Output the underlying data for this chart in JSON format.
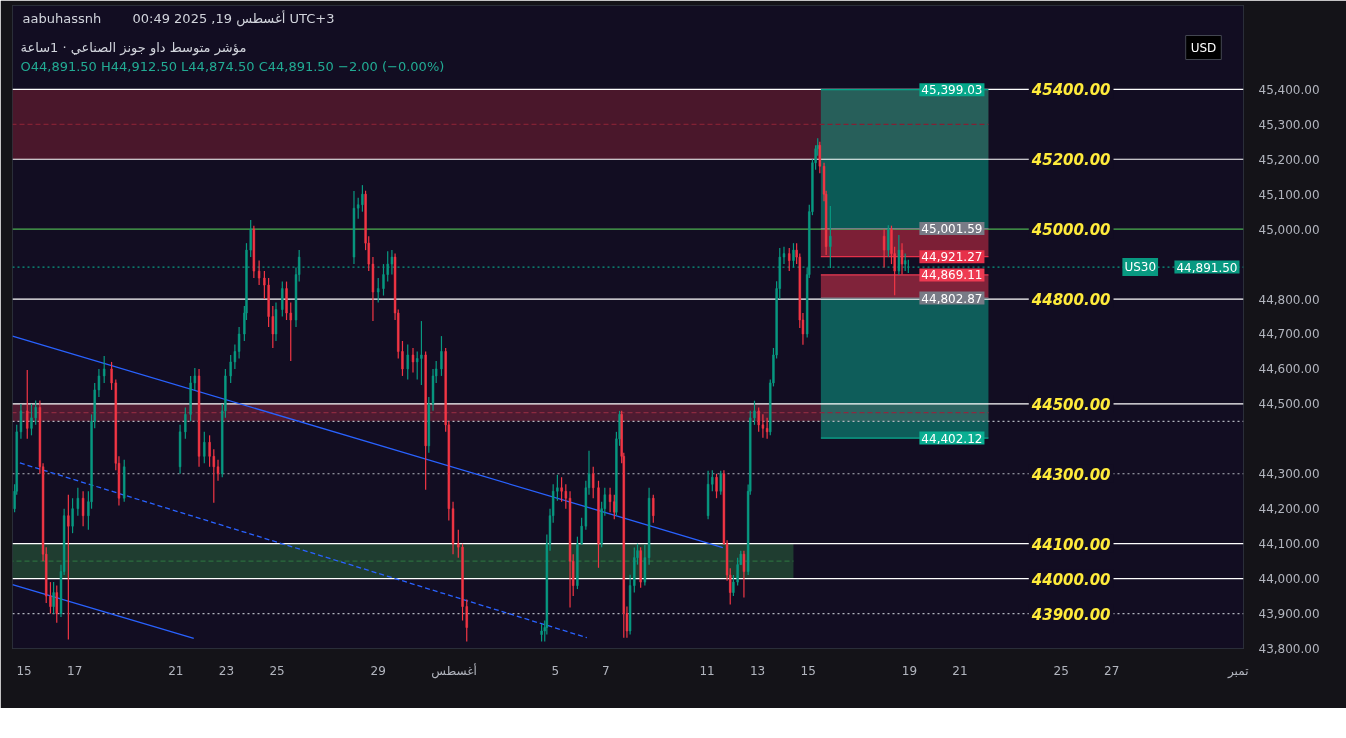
{
  "chart_data": {
    "type": "candlestick",
    "title": "مؤشر متوسط داو جونز الصناعي · 1ساعة",
    "subtitle": "O44,891.50 H44,912.50 L44,874.50 C44,891.50 −2.00 (−0.00%)",
    "ylabel": "USD",
    "annotations": [
      "aabuhassnh",
      "00:49 2025 ,19 أغسطس UTC+3",
      {
        "text": "US30",
        "x": "2025-08-28T03:00",
        "y": 44891.5
      }
    ],
    "xlim": [
      "2025-07-14T13:00",
      "2025-09-01T05:00"
    ],
    "xticks": [
      {
        "value": "2025-07-15",
        "label": "15"
      },
      {
        "value": "2025-07-17",
        "label": "17"
      },
      {
        "value": "2025-07-21",
        "label": "21"
      },
      {
        "value": "2025-07-23",
        "label": "23"
      },
      {
        "value": "2025-07-25",
        "label": "25"
      },
      {
        "value": "2025-07-29",
        "label": "29"
      },
      {
        "value": "2025-08-01",
        "label": "أغسطس"
      },
      {
        "value": "2025-08-05",
        "label": "5"
      },
      {
        "value": "2025-08-07",
        "label": "7"
      },
      {
        "value": "2025-08-11",
        "label": "11"
      },
      {
        "value": "2025-08-13",
        "label": "13"
      },
      {
        "value": "2025-08-15",
        "label": "15"
      },
      {
        "value": "2025-08-19",
        "label": "19"
      },
      {
        "value": "2025-08-21",
        "label": "21"
      },
      {
        "value": "2025-08-25",
        "label": "25"
      },
      {
        "value": "2025-08-27",
        "label": "27"
      },
      {
        "value": "2025-09-01",
        "label": "تمبر"
      }
    ],
    "ylim": [
      43800,
      45640
    ],
    "yticks": [
      {
        "value": 45400,
        "label": "45,400.00"
      },
      {
        "value": 45300,
        "label": "45,300.00"
      },
      {
        "value": 45200,
        "label": "45,200.00"
      },
      {
        "value": 45100,
        "label": "45,100.00"
      },
      {
        "value": 45000,
        "label": "45,000.00"
      },
      {
        "value": 44800,
        "label": "44,800.00"
      },
      {
        "value": 44700,
        "label": "44,700.00"
      },
      {
        "value": 44600,
        "label": "44,600.00"
      },
      {
        "value": 44500,
        "label": "44,500.00"
      },
      {
        "value": 44300,
        "label": "44,300.00"
      },
      {
        "value": 44200,
        "label": "44,200.00"
      },
      {
        "value": 44100,
        "label": "44,100.00"
      },
      {
        "value": 44000,
        "label": "44,000.00"
      },
      {
        "value": 43900,
        "label": "43,900.00"
      },
      {
        "value": 43800,
        "label": "43,800.00"
      }
    ],
    "ref_lines": [
      {
        "axis": "y",
        "value": 45400,
        "label": "45400.00",
        "color": "#ffffff"
      },
      {
        "axis": "y",
        "value": 45200,
        "label": "45200.00",
        "color": "#ffffff"
      },
      {
        "axis": "y",
        "value": 45000,
        "label": "45000.00",
        "color": "#4caf50"
      },
      {
        "axis": "y",
        "value": 44800,
        "label": "44800.00",
        "color": "#ffffff"
      },
      {
        "axis": "y",
        "value": 44500,
        "label": "44500.00",
        "color": "#ffffff"
      },
      {
        "axis": "y",
        "value": 44300,
        "label": "44300.00",
        "color": "#b2b5be",
        "line_style": "dotted"
      },
      {
        "axis": "y",
        "value": 44100,
        "label": "44100.00",
        "color": "#ffffff"
      },
      {
        "axis": "y",
        "value": 44000,
        "label": "44000.00",
        "color": "#ffffff"
      },
      {
        "axis": "y",
        "value": 43900,
        "label": "43900.00",
        "color": "#b2b5be",
        "line_style": "dotted"
      },
      {
        "axis": "y",
        "value": 44450,
        "color": "#b2b5be",
        "line_style": "dotted"
      }
    ],
    "series": [
      {
        "type": "line",
        "x": [
          "2025-07-14T13:00",
          "2025-08-22T03:00"
        ],
        "values": [
          45300,
          45300
        ],
        "lower": [
          45200,
          45200
        ],
        "upper": [
          45400,
          45400
        ],
        "color": "#822134",
        "line_style": "dashed"
      },
      {
        "type": "line",
        "x": [
          "2025-07-14T13:00",
          "2025-08-22T03:00"
        ],
        "values": [
          44475,
          44475
        ],
        "lower": [
          44450,
          44450
        ],
        "upper": [
          44500,
          44500
        ],
        "color": "#8a2a40",
        "line_style": "dashed"
      },
      {
        "type": "line",
        "x": [
          "2025-07-14T13:00",
          "2025-08-14T10:00"
        ],
        "values": [
          44050,
          44050
        ],
        "lower": [
          44000,
          44000
        ],
        "upper": [
          44100,
          44100
        ],
        "color": "#2c6d3e",
        "line_style": "dashed"
      },
      {
        "type": "line",
        "x": [
          "2025-08-15T12:00",
          "2025-08-22T03:00"
        ],
        "values": [
          45399.03,
          45399.03
        ],
        "lower": [
          45001.59,
          45001.59
        ],
        "upper": [
          45399.03,
          45399.03
        ],
        "color": "#04a78a",
        "value_labels": [
          null,
          "45,399.03"
        ]
      },
      {
        "type": "line",
        "x": [
          "2025-08-15T12:00",
          "2025-08-22T03:00"
        ],
        "values": [
          44921.27,
          44921.27
        ],
        "lower": [
          44921.27,
          44921.27
        ],
        "upper": [
          45001.59,
          45001.59
        ],
        "color": "#e6314a",
        "value_labels": [
          null,
          "44,921.27"
        ]
      },
      {
        "type": "line",
        "x": [
          "2025-08-15T12:00",
          "2025-08-22T03:00"
        ],
        "values": [
          44869.11,
          44869.11
        ],
        "lower": [
          44802.87,
          44802.87
        ],
        "upper": [
          44869.11,
          44869.11
        ],
        "color": "#ee3a52",
        "value_labels": [
          null,
          "44,869.11"
        ]
      },
      {
        "type": "line",
        "x": [
          "2025-08-15T12:00",
          "2025-08-22T03:00"
        ],
        "values": [
          44402.12,
          44402.12
        ],
        "lower": [
          44402.12,
          44402.12
        ],
        "upper": [
          44802.87,
          44802.87
        ],
        "color": "#0aae92",
        "value_labels": [
          null,
          "44,402.12"
        ]
      },
      {
        "type": "line",
        "x": [
          "2025-07-14T13:00",
          "2025-08-11T15:00"
        ],
        "values": [
          44694,
          44089
        ],
        "color": "#2962ff"
      },
      {
        "type": "line",
        "x": [
          "2025-07-14T13:00",
          "2025-07-21T17:00"
        ],
        "values": [
          43983,
          43829
        ],
        "color": "#2962ff"
      },
      {
        "type": "line",
        "x": [
          "2025-07-14T20:00",
          "2025-08-06T06:00"
        ],
        "values": [
          44331,
          43831
        ],
        "color": "#2962ff",
        "line_style": "dashed"
      },
      {
        "type": "line",
        "x": [
          "2025-08-15T12:00",
          "2025-08-22T03:00"
        ],
        "values": [
          45001.59,
          45001.59
        ],
        "color": "#787b86",
        "value_labels": [
          null,
          "45,001.59"
        ]
      },
      {
        "type": "line",
        "x": [
          "2025-08-15T12:00",
          "2025-08-22T03:00"
        ],
        "values": [
          44802.87,
          44802.87
        ],
        "color": "#787b86",
        "value_labels": [
          null,
          "44,802.87"
        ]
      },
      {
        "type": "line",
        "x": [
          "2025-07-14T13:00",
          "2025-09-01T05:00"
        ],
        "values": [
          44891.5,
          44891.5
        ],
        "color": "#089981",
        "line_style": "dotted",
        "value_labels": [
          null,
          "44,891.50"
        ]
      },
      {
        "x": [
          "2025-07-14T15:00",
          "2025-07-14T17:00",
          "2025-07-14T21:00",
          "2025-07-15T03:00",
          "2025-07-15T07:00",
          "2025-07-15T11:00",
          "2025-07-15T15:00",
          "2025-07-15T18:00",
          "2025-07-15T21:00",
          "2025-07-16T01:00",
          "2025-07-16T04:00",
          "2025-07-16T07:00",
          "2025-07-16T11:00",
          "2025-07-16T14:00",
          "2025-07-16T18:00",
          "2025-07-16T22:00",
          "2025-07-17T03:00",
          "2025-07-17T08:00",
          "2025-07-17T13:00",
          "2025-07-17T16:00",
          "2025-07-17T19:00",
          "2025-07-17T23:00",
          "2025-07-18T04:00",
          "2025-07-18T11:00",
          "2025-07-18T15:00",
          "2025-07-18T18:00",
          "2025-07-18T23:00",
          "2025-07-21T04:00",
          "2025-07-21T09:00",
          "2025-07-21T14:00",
          "2025-07-21T18:00",
          "2025-07-21T22:00",
          "2025-07-22T03:00",
          "2025-07-22T08:00",
          "2025-07-22T12:00",
          "2025-07-22T16:00",
          "2025-07-22T20:00",
          "2025-07-22T23:00",
          "2025-07-23T04:00",
          "2025-07-23T08:00",
          "2025-07-23T12:00",
          "2025-07-23T17:00",
          "2025-07-23T19:00",
          "2025-07-23T23:00",
          "2025-07-24T02:00",
          "2025-07-24T07:00",
          "2025-07-24T12:00",
          "2025-07-24T16:00",
          "2025-07-24T20:00",
          "2025-07-24T23:00",
          "2025-07-25T05:00",
          "2025-07-25T09:00",
          "2025-07-25T13:00",
          "2025-07-25T18:00",
          "2025-07-25T21:00",
          "2025-07-28T01:00",
          "2025-07-28T05:00",
          "2025-07-28T09:00",
          "2025-07-28T12:00",
          "2025-07-28T15:00",
          "2025-07-28T19:00",
          "2025-07-29T00:00",
          "2025-07-29T05:00",
          "2025-07-29T09:00",
          "2025-07-29T13:00",
          "2025-07-29T16:00",
          "2025-07-29T19:00",
          "2025-07-29T23:00",
          "2025-07-30T04:00",
          "2025-07-30T09:00",
          "2025-07-30T13:00",
          "2025-07-30T17:00",
          "2025-07-30T21:00",
          "2025-07-31T00:00",
          "2025-07-31T04:00",
          "2025-07-31T07:00",
          "2025-07-31T12:00",
          "2025-07-31T16:00",
          "2025-07-31T19:00",
          "2025-07-31T23:00",
          "2025-08-01T04:00",
          "2025-08-01T08:00",
          "2025-08-01T12:00",
          "2025-08-04T11:00",
          "2025-08-04T14:00",
          "2025-08-04T16:00",
          "2025-08-04T19:00",
          "2025-08-04T22:00",
          "2025-08-05T02:00",
          "2025-08-05T06:00",
          "2025-08-05T10:00",
          "2025-08-05T14:00",
          "2025-08-05T17:00",
          "2025-08-05T21:00",
          "2025-08-06T01:00",
          "2025-08-06T05:00",
          "2025-08-06T08:00",
          "2025-08-06T12:00",
          "2025-08-06T17:00",
          "2025-08-06T20:00",
          "2025-08-06T23:00",
          "2025-08-07T04:00",
          "2025-08-07T08:00",
          "2025-08-07T10:00",
          "2025-08-07T13:00",
          "2025-08-07T15:00",
          "2025-08-07T17:00",
          "2025-08-07T20:00",
          "2025-08-07T23:00",
          "2025-08-08T03:00",
          "2025-08-08T06:00",
          "2025-08-08T09:00",
          "2025-08-08T13:00",
          "2025-08-08T17:00",
          "2025-08-08T21:00",
          "2025-08-11T01:00",
          "2025-08-11T05:00",
          "2025-08-11T09:00",
          "2025-08-11T13:00",
          "2025-08-11T16:00",
          "2025-08-11T19:00",
          "2025-08-11T22:00",
          "2025-08-12T01:00",
          "2025-08-12T05:00",
          "2025-08-12T08:00",
          "2025-08-12T11:00",
          "2025-08-12T15:00",
          "2025-08-12T17:00",
          "2025-08-12T21:00",
          "2025-08-13T01:00",
          "2025-08-13T05:00",
          "2025-08-13T09:00",
          "2025-08-13T12:00",
          "2025-08-13T15:00",
          "2025-08-13T18:00",
          "2025-08-13T21:00",
          "2025-08-14T01:00",
          "2025-08-14T06:00",
          "2025-08-14T10:00",
          "2025-08-14T13:00",
          "2025-08-14T16:00",
          "2025-08-14T19:00",
          "2025-08-14T23:00",
          "2025-08-15T01:00",
          "2025-08-15T04:00",
          "2025-08-15T07:00",
          "2025-08-15T09:00",
          "2025-08-15T11:00",
          "2025-08-15T15:00",
          "2025-08-15T17:00",
          "2025-08-15T21:00",
          "2025-08-18T00:00",
          "2025-08-18T04:00",
          "2025-08-18T07:00",
          "2025-08-18T10:00",
          "2025-08-18T14:00",
          "2025-08-18T17:00",
          "2025-08-18T20:00",
          "2025-08-18T23:00"
        ],
        "ohlc": [
          [
            44200,
            44270,
            44190,
            44250
          ],
          [
            44250,
            44440,
            44240,
            44420
          ],
          [
            44420,
            44500,
            44400,
            44480
          ],
          [
            44480,
            44597,
            44400,
            44430
          ],
          [
            44430,
            44500,
            44410,
            44460
          ],
          [
            44460,
            44510,
            44440,
            44490
          ],
          [
            44490,
            44510,
            44300,
            44320
          ],
          [
            44320,
            44330,
            44050,
            44070
          ],
          [
            44070,
            44090,
            43930,
            43950
          ],
          [
            43950,
            43990,
            43900,
            43920
          ],
          [
            43920,
            43990,
            43900,
            43960
          ],
          [
            43960,
            43980,
            43874,
            43900
          ],
          [
            43900,
            44040,
            43890,
            44020
          ],
          [
            44020,
            44200,
            44010,
            44180
          ],
          [
            44180,
            44240,
            43826,
            44150
          ],
          [
            44150,
            44230,
            44130,
            44200
          ],
          [
            44200,
            44260,
            44180,
            44230
          ],
          [
            44230,
            44250,
            44150,
            44180
          ],
          [
            44180,
            44250,
            44140,
            44220
          ],
          [
            44220,
            44470,
            44200,
            44450
          ],
          [
            44450,
            44560,
            44430,
            44540
          ],
          [
            44540,
            44600,
            44520,
            44580
          ],
          [
            44580,
            44637,
            44560,
            44600
          ],
          [
            44600,
            44620,
            44540,
            44560
          ],
          [
            44560,
            44570,
            44310,
            44330
          ],
          [
            44330,
            44350,
            44209,
            44230
          ],
          [
            44230,
            44340,
            44220,
            44320
          ],
          [
            44320,
            44440,
            44300,
            44420
          ],
          [
            44420,
            44490,
            44400,
            44470
          ],
          [
            44470,
            44580,
            44450,
            44560
          ],
          [
            44560,
            44603,
            44540,
            44580
          ],
          [
            44580,
            44600,
            44320,
            44350
          ],
          [
            44350,
            44420,
            44330,
            44390
          ],
          [
            44390,
            44410,
            44320,
            44350
          ],
          [
            44350,
            44370,
            44217,
            44320
          ],
          [
            44320,
            44340,
            44280,
            44300
          ],
          [
            44300,
            44500,
            44290,
            44480
          ],
          [
            44480,
            44600,
            44460,
            44580
          ],
          [
            44580,
            44640,
            44560,
            44620
          ],
          [
            44620,
            44670,
            44600,
            44650
          ],
          [
            44650,
            44720,
            44630,
            44700
          ],
          [
            44700,
            44780,
            44680,
            44760
          ],
          [
            44760,
            44960,
            44740,
            44940
          ],
          [
            44940,
            45026,
            44920,
            45000
          ],
          [
            45000,
            45010,
            44860,
            44880
          ],
          [
            44880,
            44910,
            44840,
            44860
          ],
          [
            44860,
            44880,
            44800,
            44840
          ],
          [
            44840,
            44860,
            44720,
            44750
          ],
          [
            44750,
            44780,
            44660,
            44700
          ],
          [
            44700,
            44790,
            44680,
            44770
          ],
          [
            44770,
            44850,
            44750,
            44830
          ],
          [
            44830,
            44850,
            44740,
            44760
          ],
          [
            44760,
            44790,
            44623,
            44740
          ],
          [
            44740,
            44890,
            44720,
            44870
          ],
          [
            44870,
            44940,
            44850,
            44920
          ],
          [
            44920,
            45109,
            44900,
            45060
          ],
          [
            45060,
            45090,
            45030,
            45070
          ],
          [
            45070,
            45126,
            45050,
            45100
          ],
          [
            45100,
            45110,
            44940,
            44960
          ],
          [
            44960,
            44980,
            44880,
            44900
          ],
          [
            44900,
            44920,
            44737,
            44820
          ],
          [
            44820,
            44860,
            44790,
            44830
          ],
          [
            44830,
            44900,
            44810,
            44870
          ],
          [
            44870,
            44937,
            44850,
            44900
          ],
          [
            44900,
            44940,
            44870,
            44920
          ],
          [
            44920,
            44930,
            44740,
            44760
          ],
          [
            44760,
            44770,
            44630,
            44650
          ],
          [
            44650,
            44680,
            44580,
            44600
          ],
          [
            44600,
            44670,
            44570,
            44640
          ],
          [
            44640,
            44660,
            44590,
            44620
          ],
          [
            44620,
            44650,
            44570,
            44630
          ],
          [
            44630,
            44737,
            44554,
            44640
          ],
          [
            44640,
            44650,
            44254,
            44380
          ],
          [
            44380,
            44520,
            44360,
            44500
          ],
          [
            44500,
            44600,
            44480,
            44580
          ],
          [
            44580,
            44623,
            44560,
            44600
          ],
          [
            44600,
            44694,
            44580,
            44650
          ],
          [
            44650,
            44660,
            44420,
            44440
          ],
          [
            44440,
            44450,
            44166,
            44200
          ],
          [
            44200,
            44220,
            44070,
            44100
          ],
          [
            44100,
            44140,
            44060,
            44090
          ],
          [
            44090,
            44100,
            43880,
            43920
          ],
          [
            43920,
            43940,
            43820,
            43860
          ],
          [
            43840,
            43870,
            43820,
            43850
          ],
          [
            43850,
            43880,
            43820,
            43860
          ],
          [
            43860,
            44126,
            43840,
            44100
          ],
          [
            44100,
            44200,
            44080,
            44180
          ],
          [
            44180,
            44270,
            44160,
            44250
          ],
          [
            44250,
            44297,
            44223,
            44260
          ],
          [
            44260,
            44290,
            44220,
            44250
          ],
          [
            44250,
            44270,
            44200,
            44230
          ],
          [
            44230,
            44250,
            43917,
            44050
          ],
          [
            44050,
            44070,
            43950,
            43980
          ],
          [
            43980,
            44120,
            43970,
            44100
          ],
          [
            44100,
            44174,
            44097,
            44150
          ],
          [
            44150,
            44280,
            44140,
            44260
          ],
          [
            44260,
            44366,
            44240,
            44300
          ],
          [
            44300,
            44320,
            44230,
            44260
          ],
          [
            44260,
            44280,
            44031,
            44100
          ],
          [
            44100,
            44220,
            44090,
            44200
          ],
          [
            44200,
            44260,
            44180,
            44240
          ],
          [
            44240,
            44260,
            44190,
            44220
          ],
          [
            44220,
            44240,
            44170,
            44190
          ],
          [
            44190,
            44420,
            44180,
            44400
          ],
          [
            44400,
            44480,
            44380,
            44470
          ],
          [
            44470,
            44480,
            44330,
            44350
          ],
          [
            44350,
            44360,
            43831,
            43900
          ],
          [
            43900,
            43920,
            43831,
            43850
          ],
          [
            43850,
            44011,
            43840,
            43980
          ],
          [
            43980,
            44089,
            43960,
            44060
          ],
          [
            44060,
            44100,
            44040,
            44080
          ],
          [
            44080,
            44090,
            43974,
            43990
          ],
          [
            43990,
            44097,
            43980,
            44060
          ],
          [
            44060,
            44260,
            44040,
            44230
          ],
          [
            44230,
            44240,
            44160,
            44180
          ],
          [
            44180,
            44309,
            44170,
            44270
          ],
          [
            44270,
            44310,
            44250,
            44290
          ],
          [
            44290,
            44300,
            44230,
            44250
          ],
          [
            44250,
            44309,
            44240,
            44300
          ],
          [
            44300,
            44310,
            44097,
            44100
          ],
          [
            44100,
            44110,
            43994,
            44010
          ],
          [
            44010,
            44030,
            43926,
            43960
          ],
          [
            43960,
            44010,
            43950,
            43990
          ],
          [
            43990,
            44060,
            43980,
            44040
          ],
          [
            44040,
            44080,
            44040,
            44070
          ],
          [
            44070,
            44080,
            43946,
            44020
          ],
          [
            44020,
            44269,
            44010,
            44250
          ],
          [
            44250,
            44480,
            44240,
            44460
          ],
          [
            44460,
            44509,
            44440,
            44480
          ],
          [
            44480,
            44490,
            44420,
            44440
          ],
          [
            44440,
            44470,
            44403,
            44430
          ],
          [
            44430,
            44460,
            44400,
            44420
          ],
          [
            44420,
            44570,
            44410,
            44560
          ],
          [
            44560,
            44660,
            44550,
            44640
          ],
          [
            44640,
            44851,
            44630,
            44830
          ],
          [
            44830,
            44946,
            44800,
            44920
          ],
          [
            44920,
            44950,
            44900,
            44930
          ],
          [
            44930,
            44946,
            44880,
            44910
          ],
          [
            44910,
            44960,
            44890,
            44940
          ],
          [
            44940,
            44960,
            44900,
            44920
          ],
          [
            44920,
            44930,
            44717,
            44740
          ],
          [
            44740,
            44760,
            44669,
            44700
          ],
          [
            44700,
            44890,
            44690,
            44870
          ],
          [
            44870,
            45070,
            44860,
            45050
          ],
          [
            45050,
            45200,
            45040,
            45190
          ],
          [
            45190,
            45240,
            45170,
            45230
          ],
          [
            45230,
            45260,
            45210,
            45240
          ],
          [
            45240,
            45250,
            45160,
            45180
          ],
          [
            45180,
            45190,
            45080,
            45100
          ],
          [
            45100,
            45110,
            44926,
            44950
          ],
          [
            44950,
            45066,
            44889,
            44980
          ],
          [
            44980,
            45000,
            44890,
            44940
          ],
          [
            44940,
            45011,
            44920,
            45000
          ],
          [
            45000,
            45010,
            44900,
            44930
          ],
          [
            44930,
            44950,
            44811,
            44880
          ],
          [
            44880,
            44983,
            44869,
            44940
          ],
          [
            44940,
            44960,
            44870,
            44900
          ],
          [
            44900,
            44930,
            44880,
            44910
          ],
          [
            44891.5,
            44912.5,
            44874.5,
            44891.5
          ]
        ],
        "colors": [
          "#089981",
          "#089981",
          "#089981",
          "#f23645",
          "#089981",
          "#089981",
          "#f23645",
          "#f23645",
          "#f23645",
          "#f23645",
          "#089981",
          "#f23645",
          "#089981",
          "#089981",
          "#f23645",
          "#089981",
          "#089981",
          "#f23645",
          "#089981",
          "#089981",
          "#089981",
          "#089981",
          "#089981",
          "#f23645",
          "#f23645",
          "#f23645",
          "#089981",
          "#089981",
          "#089981",
          "#089981",
          "#089981",
          "#f23645",
          "#089981",
          "#f23645",
          "#f23645",
          "#f23645",
          "#089981",
          "#089981",
          "#089981",
          "#089981",
          "#089981",
          "#089981",
          "#089981",
          "#089981",
          "#f23645",
          "#f23645",
          "#f23645",
          "#f23645",
          "#f23645",
          "#089981",
          "#089981",
          "#f23645",
          "#f23645",
          "#089981",
          "#089981",
          "#089981",
          "#089981",
          "#089981",
          "#f23645",
          "#f23645",
          "#f23645",
          "#089981",
          "#089981",
          "#089981",
          "#089981",
          "#f23645",
          "#f23645",
          "#f23645",
          "#089981",
          "#f23645",
          "#089981",
          "#089981",
          "#f23645",
          "#089981",
          "#089981",
          "#089981",
          "#089981",
          "#f23645",
          "#f23645",
          "#f23645",
          "#f23645",
          "#f23645",
          "#f23645",
          "#089981",
          "#089981",
          "#089981",
          "#089981",
          "#089981",
          "#089981",
          "#f23645",
          "#f23645",
          "#f23645",
          "#f23645",
          "#089981",
          "#089981",
          "#089981",
          "#089981",
          "#f23645",
          "#f23645",
          "#089981",
          "#089981",
          "#f23645",
          "#f23645",
          "#089981",
          "#089981",
          "#f23645",
          "#f23645",
          "#f23645",
          "#089981",
          "#089981",
          "#089981",
          "#f23645",
          "#089981",
          "#089981",
          "#f23645",
          "#089981",
          "#089981",
          "#f23645",
          "#089981",
          "#f23645",
          "#f23645",
          "#f23645",
          "#089981",
          "#089981",
          "#089981",
          "#f23645",
          "#089981",
          "#089981",
          "#089981",
          "#f23645",
          "#f23645",
          "#f23645",
          "#089981",
          "#089981",
          "#089981",
          "#089981",
          "#089981",
          "#f23645",
          "#089981",
          "#f23645",
          "#f23645",
          "#f23645",
          "#089981",
          "#089981",
          "#089981",
          "#089981",
          "#089981",
          "#f23645",
          "#f23645",
          "#f23645",
          "#089981",
          "#f23645",
          "#089981",
          "#f23645",
          "#f23645",
          "#089981",
          "#f23645",
          "#089981",
          "#089981"
        ]
      }
    ]
  }
}
